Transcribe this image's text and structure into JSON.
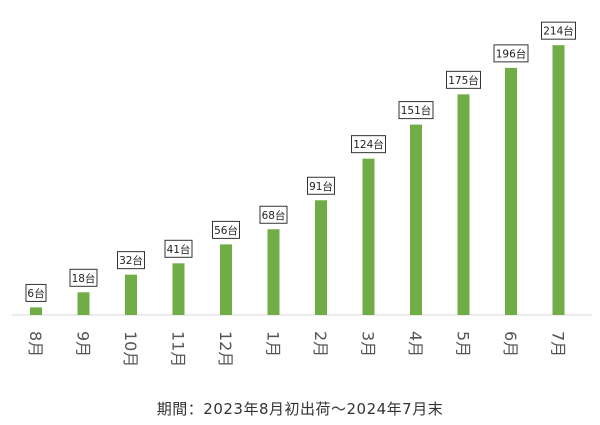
{
  "chart_data": {
    "type": "bar",
    "categories": [
      "8月",
      "9月",
      "10月",
      "11月",
      "12月",
      "1月",
      "2月",
      "3月",
      "4月",
      "5月",
      "6月",
      "7月"
    ],
    "values": [
      6,
      18,
      32,
      41,
      56,
      68,
      91,
      124,
      151,
      175,
      196,
      214
    ],
    "data_labels": [
      "6台",
      "18台",
      "32台",
      "41台",
      "56台",
      "68台",
      "91台",
      "124台",
      "151台",
      "175台",
      "196台",
      "214台"
    ],
    "ylim": [
      0,
      230
    ],
    "grid": false,
    "bar_color": "#70ad47",
    "x_tick_rotation": "90deg-clockwise"
  },
  "caption": "期間：2023年8月初出荷～2024年7月末"
}
